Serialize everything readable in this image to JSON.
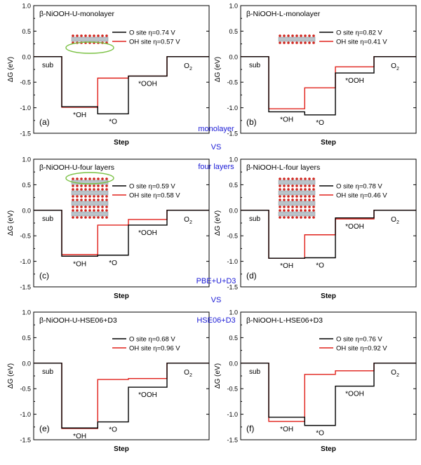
{
  "figure": {
    "center_labels": [
      "monolayer",
      "VS",
      "four layers",
      "PBE+U+D3",
      "VS",
      "HSE06+D3"
    ]
  },
  "colors": {
    "o_site": "#000000",
    "oh_site": "#e0201a",
    "accent": "#1a1ad6",
    "highlight": "#7ac143"
  },
  "chart_data": [
    {
      "type": "line",
      "panel_letter": "(a)",
      "title": "β-NiOOH-U-monolayer",
      "xlabel": "Step",
      "ylabel": "ΔG (eV)",
      "ylim": [
        -1.5,
        1.0
      ],
      "yticks": [
        "1.0",
        "0.5",
        "0.0",
        "-0.5",
        "-1.0",
        "-1.5"
      ],
      "steps": [
        "sub",
        "*OH",
        "*O",
        "*OOH",
        "O2"
      ],
      "series": [
        {
          "name": "O site η=0.74 V",
          "values": [
            0.0,
            -0.98,
            -1.12,
            -0.38,
            0.0
          ]
        },
        {
          "name": "OH site η=0.57 V",
          "values": [
            0.0,
            -0.99,
            -0.42,
            -0.38,
            0.0
          ]
        }
      ]
    },
    {
      "type": "line",
      "panel_letter": "(b)",
      "title": "β-NiOOH-L-monolayer",
      "xlabel": "Step",
      "ylabel": "ΔG (eV)",
      "ylim": [
        -1.5,
        1.0
      ],
      "yticks": [
        "1.0",
        "0.5",
        "0.0",
        "-0.5",
        "-1.0",
        "-1.5"
      ],
      "steps": [
        "sub",
        "*OH",
        "*O",
        "*OOH",
        "O2"
      ],
      "series": [
        {
          "name": "O site η=0.82 V",
          "values": [
            0.0,
            -1.08,
            -1.14,
            -0.32,
            0.0
          ]
        },
        {
          "name": "OH site η=0.41 V",
          "values": [
            0.0,
            -1.02,
            -0.61,
            -0.2,
            0.0
          ]
        }
      ]
    },
    {
      "type": "line",
      "panel_letter": "(c)",
      "title": "β-NiOOH-U-four layers",
      "xlabel": "Step",
      "ylabel": "ΔG (eV)",
      "ylim": [
        -1.5,
        1.0
      ],
      "yticks": [
        "1.0",
        "0.5",
        "0.0",
        "-0.5",
        "-1.0",
        "-1.5"
      ],
      "steps": [
        "sub",
        "*OH",
        "*O",
        "*OOH",
        "O2"
      ],
      "series": [
        {
          "name": "O site η=0.59 V",
          "values": [
            0.0,
            -0.9,
            -0.88,
            -0.29,
            0.0
          ]
        },
        {
          "name": "OH site η=0.58 V",
          "values": [
            0.0,
            -0.87,
            -0.29,
            -0.18,
            0.0
          ]
        }
      ]
    },
    {
      "type": "line",
      "panel_letter": "(d)",
      "title": "β-NiOOH-L-four layers",
      "xlabel": "Step",
      "ylabel": "ΔG (eV)",
      "ylim": [
        -1.5,
        1.0
      ],
      "yticks": [
        "1.0",
        "0.5",
        "0.0",
        "-0.5",
        "-1.0",
        "-1.5"
      ],
      "steps": [
        "sub",
        "*OH",
        "*O",
        "*OOH",
        "O2"
      ],
      "series": [
        {
          "name": "O site η=0.78 V",
          "values": [
            0.0,
            -0.94,
            -0.93,
            -0.15,
            0.0
          ]
        },
        {
          "name": "OH site η=0.46 V",
          "values": [
            0.0,
            -0.94,
            -0.48,
            -0.17,
            0.0
          ]
        }
      ]
    },
    {
      "type": "line",
      "panel_letter": "(e)",
      "title": "β-NiOOH-U-HSE06+D3",
      "xlabel": "Step",
      "ylabel": "ΔG (eV)",
      "ylim": [
        -1.5,
        1.0
      ],
      "yticks": [
        "1.0",
        "0.5",
        "0.0",
        "-0.5",
        "-1.0",
        "-1.5"
      ],
      "steps": [
        "sub",
        "*OH",
        "*O",
        "*OOH",
        "O2"
      ],
      "series": [
        {
          "name": "O site η=0.68 V",
          "values": [
            0.0,
            -1.27,
            -1.15,
            -0.47,
            0.0
          ]
        },
        {
          "name": "OH site η=0.96 V",
          "values": [
            0.0,
            -1.28,
            -0.32,
            -0.3,
            0.0
          ]
        }
      ]
    },
    {
      "type": "line",
      "panel_letter": "(f)",
      "title": "β-NiOOH-L-HSE06+D3",
      "xlabel": "Step",
      "ylabel": "ΔG (eV)",
      "ylim": [
        -1.5,
        1.0
      ],
      "yticks": [
        "1.0",
        "0.5",
        "0.0",
        "-0.5",
        "-1.0",
        "-1.5"
      ],
      "steps": [
        "sub",
        "*OH",
        "*O",
        "*OOH",
        "O2"
      ],
      "series": [
        {
          "name": "O site η=0.76 V",
          "values": [
            0.0,
            -1.06,
            -1.22,
            -0.45,
            0.0
          ]
        },
        {
          "name": "OH site η=0.92 V",
          "values": [
            0.0,
            -1.14,
            -0.22,
            -0.15,
            0.0
          ]
        }
      ]
    }
  ]
}
